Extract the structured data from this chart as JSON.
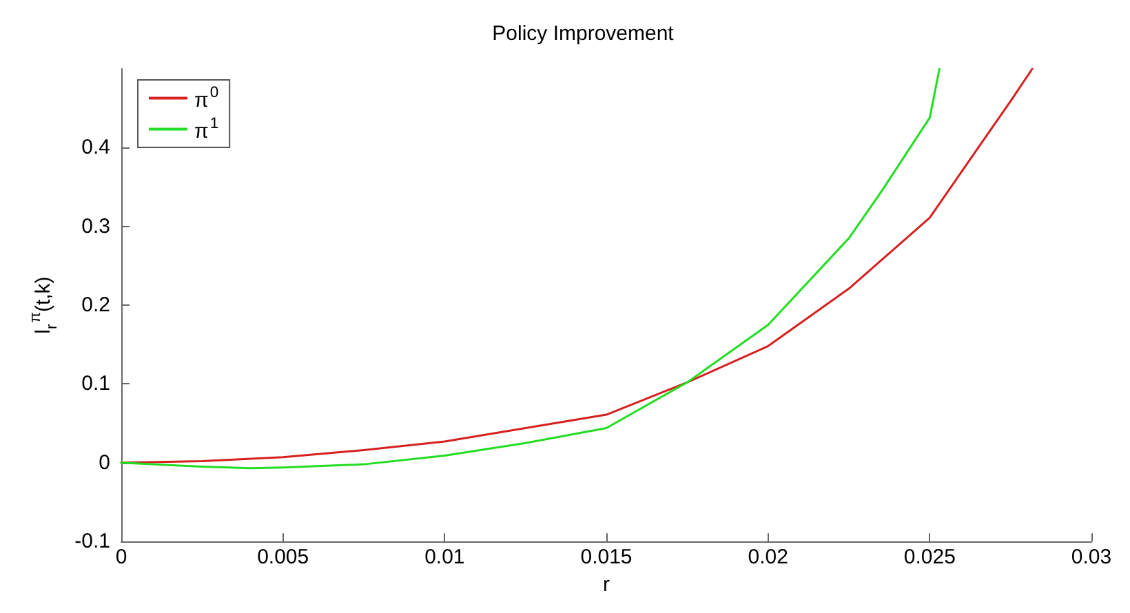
{
  "chart_data": {
    "type": "line",
    "title": "Policy Improvement",
    "xlabel": "r",
    "ylabel": "l$_{r}$$^{π}$(t,k)",
    "xlim": [
      0,
      0.03
    ],
    "xticks": [
      0,
      0.005,
      0.01,
      0.015,
      0.02,
      0.025,
      0.03
    ],
    "ylim": [
      -0.1,
      0.5
    ],
    "yticks": [
      -0.1,
      0,
      0.1,
      0.2,
      0.3,
      0.4
    ],
    "grid": false,
    "legend": "top left",
    "marker": "none",
    "line_style": "solid",
    "series": [
      {
        "name": "π$^{0}$",
        "color": "#d62020",
        "x": [
          0,
          0.0025,
          0.005,
          0.0075,
          0.01,
          0.0125,
          0.015,
          0.0175,
          0.02,
          0.0225,
          0.025,
          0.0265,
          0.0275,
          0.02817
        ],
        "values": [
          0,
          0.002,
          0.007,
          0.016,
          0.027,
          0.044,
          0.061,
          0.102,
          0.148,
          0.221,
          0.311,
          0.4,
          0.459,
          0.5
        ]
      },
      {
        "name": "π$^{1}$",
        "color": "#22dd22",
        "x": [
          0,
          0.0025,
          0.004,
          0.005,
          0.0075,
          0.01,
          0.0125,
          0.015,
          0.0175,
          0.02,
          0.0225,
          0.0235,
          0.025,
          0.0253
        ],
        "values": [
          0,
          -0.005,
          -0.007,
          -0.006,
          -0.002,
          0.009,
          0.025,
          0.044,
          0.102,
          0.175,
          0.285,
          0.344,
          0.438,
          0.5
        ]
      }
    ]
  }
}
